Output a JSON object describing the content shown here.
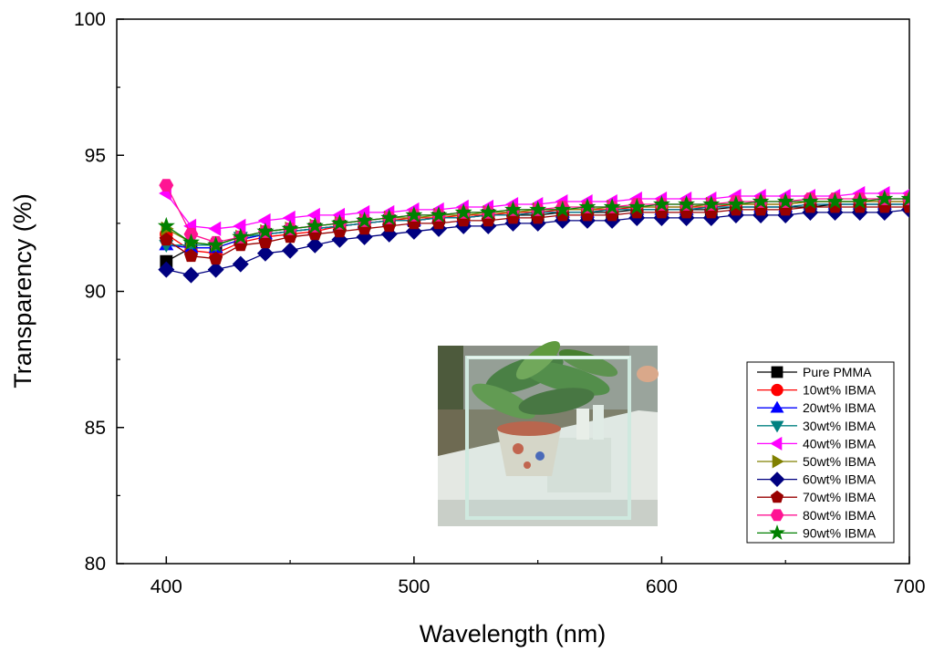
{
  "chart_data": {
    "type": "line",
    "title": "",
    "xlabel": "Wavelength (nm)",
    "ylabel": "Transparency (%)",
    "xlim": [
      380,
      700
    ],
    "ylim": [
      80,
      100
    ],
    "x_ticks": [
      400,
      500,
      600,
      700
    ],
    "y_ticks": [
      80,
      85,
      90,
      95,
      100
    ],
    "grid": false,
    "legend_position": "bottom-right",
    "x": [
      400,
      410,
      420,
      430,
      440,
      450,
      460,
      470,
      480,
      490,
      500,
      510,
      520,
      530,
      540,
      550,
      560,
      570,
      580,
      590,
      600,
      610,
      620,
      630,
      640,
      650,
      660,
      670,
      680,
      690,
      700
    ],
    "series": [
      {
        "name": "Pure PMMA",
        "color": "#000000",
        "marker": "square",
        "values": [
          91.1,
          91.6,
          91.6,
          91.9,
          92.1,
          92.2,
          92.3,
          92.4,
          92.5,
          92.6,
          92.6,
          92.7,
          92.7,
          92.8,
          92.8,
          92.8,
          92.9,
          92.9,
          92.9,
          93.0,
          93.0,
          93.0,
          93.0,
          93.1,
          93.1,
          93.1,
          93.1,
          93.2,
          93.2,
          93.2,
          93.2
        ]
      },
      {
        "name": "10wt% IBMA",
        "color": "#ff0000",
        "marker": "circle",
        "values": [
          92.1,
          91.5,
          91.4,
          91.8,
          92.0,
          92.1,
          92.2,
          92.4,
          92.5,
          92.6,
          92.7,
          92.7,
          92.8,
          92.8,
          92.9,
          92.9,
          93.0,
          93.0,
          93.0,
          93.1,
          93.1,
          93.1,
          93.1,
          93.2,
          93.2,
          93.2,
          93.3,
          93.3,
          93.3,
          93.3,
          93.3
        ]
      },
      {
        "name": "20wt% IBMA",
        "color": "#0000ff",
        "marker": "triangle-up",
        "values": [
          91.7,
          91.6,
          91.6,
          91.9,
          92.1,
          92.2,
          92.3,
          92.4,
          92.5,
          92.6,
          92.6,
          92.7,
          92.7,
          92.8,
          92.8,
          92.9,
          92.9,
          92.9,
          93.0,
          93.0,
          93.0,
          93.0,
          93.1,
          93.1,
          93.1,
          93.1,
          93.2,
          93.2,
          93.2,
          93.2,
          93.2
        ]
      },
      {
        "name": "30wt% IBMA",
        "color": "#008080",
        "marker": "triangle-down",
        "values": [
          91.7,
          91.7,
          91.7,
          92.0,
          92.1,
          92.2,
          92.3,
          92.4,
          92.5,
          92.6,
          92.6,
          92.7,
          92.7,
          92.8,
          92.8,
          92.9,
          92.9,
          92.9,
          93.0,
          93.0,
          93.0,
          93.0,
          93.1,
          93.1,
          93.1,
          93.1,
          93.2,
          93.2,
          93.2,
          93.2,
          93.2
        ]
      },
      {
        "name": "40wt% IBMA",
        "color": "#ff00ff",
        "marker": "triangle-left",
        "values": [
          93.6,
          92.4,
          92.3,
          92.4,
          92.6,
          92.7,
          92.8,
          92.8,
          92.9,
          92.9,
          93.0,
          93.0,
          93.1,
          93.1,
          93.2,
          93.2,
          93.3,
          93.3,
          93.3,
          93.4,
          93.4,
          93.4,
          93.4,
          93.5,
          93.5,
          93.5,
          93.5,
          93.5,
          93.6,
          93.6,
          93.6
        ]
      },
      {
        "name": "50wt% IBMA",
        "color": "#808000",
        "marker": "triangle-right",
        "values": [
          92.3,
          91.8,
          91.7,
          92.0,
          92.2,
          92.3,
          92.4,
          92.5,
          92.6,
          92.7,
          92.7,
          92.8,
          92.8,
          92.9,
          92.9,
          93.0,
          93.0,
          93.0,
          93.1,
          93.1,
          93.1,
          93.1,
          93.2,
          93.2,
          93.2,
          93.2,
          93.3,
          93.3,
          93.3,
          93.3,
          93.3
        ]
      },
      {
        "name": "60wt% IBMA",
        "color": "#000080",
        "marker": "diamond",
        "values": [
          90.8,
          90.6,
          90.8,
          91.0,
          91.4,
          91.5,
          91.7,
          91.9,
          92.0,
          92.1,
          92.2,
          92.3,
          92.4,
          92.4,
          92.5,
          92.5,
          92.6,
          92.6,
          92.6,
          92.7,
          92.7,
          92.7,
          92.7,
          92.8,
          92.8,
          92.8,
          92.9,
          92.9,
          92.9,
          92.9,
          93.0
        ]
      },
      {
        "name": "70wt% IBMA",
        "color": "#990000",
        "marker": "pentagon",
        "values": [
          91.9,
          91.3,
          91.2,
          91.7,
          91.8,
          92.0,
          92.1,
          92.2,
          92.3,
          92.4,
          92.5,
          92.5,
          92.6,
          92.6,
          92.7,
          92.7,
          92.8,
          92.8,
          92.8,
          92.9,
          92.9,
          92.9,
          92.9,
          93.0,
          93.0,
          93.0,
          93.1,
          93.1,
          93.1,
          93.1,
          93.1
        ]
      },
      {
        "name": "80wt% IBMA",
        "color": "#ff1493",
        "marker": "hexagon",
        "values": [
          93.9,
          92.1,
          91.8,
          92.0,
          92.2,
          92.3,
          92.4,
          92.5,
          92.6,
          92.7,
          92.8,
          92.8,
          92.9,
          92.9,
          93.0,
          93.0,
          93.1,
          93.1,
          93.1,
          93.2,
          93.2,
          93.2,
          93.2,
          93.3,
          93.3,
          93.3,
          93.4,
          93.4,
          93.4,
          93.4,
          93.4
        ]
      },
      {
        "name": "90wt% IBMA",
        "color": "#008000",
        "marker": "star",
        "values": [
          92.4,
          91.8,
          91.7,
          92.0,
          92.2,
          92.3,
          92.4,
          92.5,
          92.6,
          92.7,
          92.8,
          92.8,
          92.9,
          92.9,
          93.0,
          93.0,
          93.0,
          93.1,
          93.1,
          93.1,
          93.2,
          93.2,
          93.2,
          93.2,
          93.3,
          93.3,
          93.3,
          93.3,
          93.3,
          93.4,
          93.4
        ]
      }
    ],
    "inset_photo": {
      "subject": "potted-plant-behind-transparent-panel"
    }
  }
}
